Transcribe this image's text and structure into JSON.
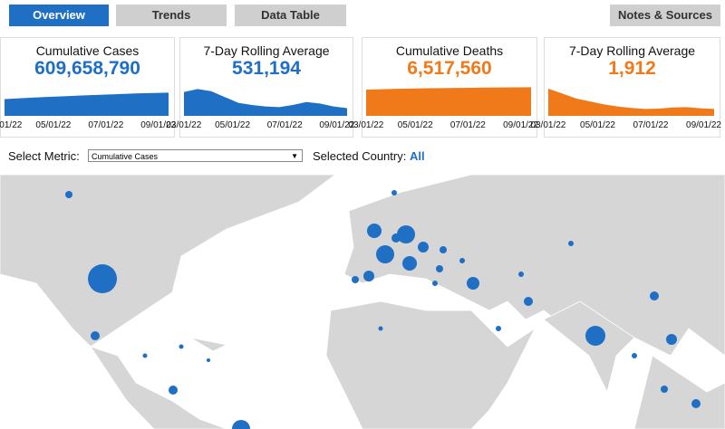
{
  "tabs": [
    "Overview",
    "Trends",
    "Data Table",
    "Notes & Sources"
  ],
  "cards": [
    {
      "title": "Cumulative Cases",
      "value": "609,658,790",
      "color": "#1f6fc5",
      "ylim": [
        0,
        760000000
      ],
      "trend": [
        440000000,
        460000000,
        480000000,
        500000000,
        515000000,
        530000000,
        545000000,
        560000000,
        575000000,
        590000000,
        600000000,
        609658790
      ]
    },
    {
      "title": "7-Day Rolling Average",
      "value": "531,194",
      "color": "#1f6fc5",
      "ylim": [
        0,
        2000000
      ],
      "trend": [
        1650000,
        1850000,
        1700000,
        1300000,
        900000,
        750000,
        650000,
        600000,
        750000,
        950000,
        850000,
        650000,
        531194
      ]
    },
    {
      "title": "Cumulative Deaths",
      "value": "6,517,560",
      "color": "#f07a1a",
      "ylim": [
        0,
        6600000
      ],
      "trend": [
        5950000,
        6050000,
        6150000,
        6220000,
        6280000,
        6320000,
        6360000,
        6400000,
        6440000,
        6470000,
        6500000,
        6517560
      ]
    },
    {
      "title": "7-Day Rolling Average",
      "value": "1,912",
      "color": "#f07a1a",
      "ylim": [
        0,
        8000
      ],
      "trend": [
        7500,
        6200,
        4800,
        4000,
        3200,
        2600,
        2200,
        1900,
        2000,
        2300,
        2400,
        2100,
        1912
      ]
    }
  ],
  "xticks": [
    "03/01/22",
    "05/01/22",
    "07/01/22",
    "09/01/22"
  ],
  "select_label": "Select Metric:",
  "select_value": "Cumulative Cases",
  "country_label": "Selected Country:",
  "country_value": "All"
}
